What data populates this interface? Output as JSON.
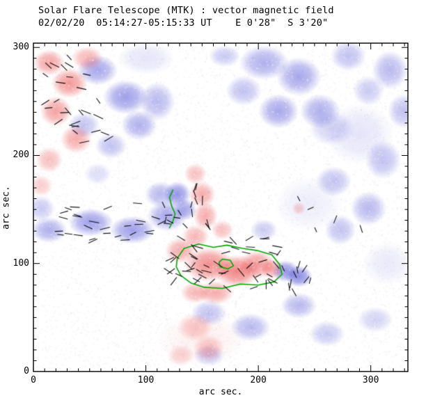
{
  "chart_data": {
    "type": "heatmap",
    "title": "Solar Flare Telescope (MTK) : vector magnetic field",
    "subtitle": "02/02/20  05:14:27-05:15:33 UT    E 0'28\"  S 3'20\"",
    "xlabel": "arc sec.",
    "ylabel": "arc sec.",
    "xlim": [
      0,
      333
    ],
    "ylim": [
      0,
      304
    ],
    "xticks": [
      0,
      100,
      200,
      300
    ],
    "yticks": [
      0,
      100,
      200,
      300
    ],
    "minor_tick_step": 10,
    "grid": false,
    "legend": "none",
    "colors": {
      "positive": "#eb4646",
      "negative": "#5050d7",
      "contour": "#00a800",
      "vectors": "#000000",
      "frame": "#000000",
      "background": "#ffffff"
    },
    "description": "Vector magnetogram map: blue = negative polarity longitudinal field, red = positive polarity, black segments = transverse field vectors, green = contours around the flaring positive-polarity core.",
    "field_blobs": {
      "negative": [
        [
          57,
          279,
          18,
          14,
          0.5
        ],
        [
          82,
          254,
          20,
          16,
          0.55
        ],
        [
          45,
          228,
          14,
          12,
          0.35
        ],
        [
          94,
          228,
          16,
          14,
          0.45
        ],
        [
          69,
          209,
          14,
          12,
          0.35
        ],
        [
          110,
          250,
          16,
          18,
          0.4
        ],
        [
          170,
          292,
          14,
          10,
          0.3
        ],
        [
          205,
          286,
          22,
          16,
          0.45
        ],
        [
          236,
          273,
          20,
          18,
          0.5
        ],
        [
          255,
          241,
          18,
          16,
          0.45
        ],
        [
          218,
          241,
          18,
          16,
          0.5
        ],
        [
          187,
          260,
          16,
          14,
          0.35
        ],
        [
          317,
          279,
          16,
          18,
          0.4
        ],
        [
          280,
          292,
          16,
          14,
          0.35
        ],
        [
          298,
          260,
          14,
          14,
          0.3
        ],
        [
          329,
          241,
          14,
          16,
          0.35
        ],
        [
          311,
          196,
          16,
          18,
          0.35
        ],
        [
          267,
          176,
          16,
          14,
          0.35
        ],
        [
          298,
          151,
          16,
          16,
          0.4
        ],
        [
          273,
          131,
          14,
          14,
          0.35
        ],
        [
          265,
          225,
          20,
          16,
          0.25
        ],
        [
          290,
          220,
          30,
          28,
          0.15
        ],
        [
          14,
          131,
          16,
          12,
          0.45
        ],
        [
          51,
          138,
          20,
          13,
          0.55
        ],
        [
          88,
          131,
          20,
          13,
          0.55
        ],
        [
          119,
          144,
          18,
          14,
          0.5
        ],
        [
          113,
          164,
          14,
          12,
          0.4
        ],
        [
          128,
          164,
          12,
          12,
          0.6
        ],
        [
          135,
          150,
          10,
          10,
          0.5
        ],
        [
          57,
          183,
          12,
          10,
          0.2
        ],
        [
          7,
          151,
          12,
          12,
          0.3
        ],
        [
          205,
          131,
          12,
          10,
          0.3
        ],
        [
          224,
          93,
          12,
          10,
          0.6
        ],
        [
          236,
          88,
          12,
          10,
          0.65
        ],
        [
          156,
          54,
          16,
          12,
          0.35
        ],
        [
          193,
          41,
          18,
          13,
          0.4
        ],
        [
          236,
          61,
          16,
          12,
          0.4
        ],
        [
          156,
          15,
          14,
          10,
          0.3
        ],
        [
          261,
          35,
          16,
          12,
          0.3
        ],
        [
          304,
          48,
          16,
          12,
          0.25
        ],
        [
          315,
          100,
          22,
          20,
          0.12
        ],
        [
          245,
          155,
          30,
          25,
          0.1
        ],
        [
          100,
          290,
          25,
          15,
          0.15
        ]
      ],
      "positive": [
        [
          14,
          286,
          14,
          12,
          0.5
        ],
        [
          32,
          267,
          16,
          14,
          0.55
        ],
        [
          48,
          290,
          14,
          11,
          0.4
        ],
        [
          20,
          241,
          14,
          14,
          0.5
        ],
        [
          38,
          215,
          14,
          13,
          0.45
        ],
        [
          14,
          196,
          12,
          12,
          0.35
        ],
        [
          7,
          172,
          10,
          10,
          0.28
        ],
        [
          156,
          99,
          22,
          16,
          0.6
        ],
        [
          181,
          93,
          20,
          15,
          0.65
        ],
        [
          199,
          99,
          16,
          13,
          0.55
        ],
        [
          212,
          95,
          10,
          9,
          0.45
        ],
        [
          131,
          112,
          14,
          12,
          0.45
        ],
        [
          144,
          125,
          12,
          11,
          0.4
        ],
        [
          162,
          73,
          16,
          11,
          0.45
        ],
        [
          144,
          73,
          13,
          10,
          0.4
        ],
        [
          150,
          164,
          12,
          12,
          0.45
        ],
        [
          153,
          144,
          11,
          13,
          0.45
        ],
        [
          144,
          183,
          10,
          10,
          0.35
        ],
        [
          168,
          131,
          10,
          9,
          0.35
        ],
        [
          144,
          41,
          16,
          13,
          0.3
        ],
        [
          156,
          22,
          14,
          12,
          0.3
        ],
        [
          131,
          15,
          12,
          10,
          0.25
        ],
        [
          236,
          151,
          6,
          6,
          0.25
        ],
        [
          150,
          30,
          40,
          25,
          0.08
        ]
      ]
    },
    "vector_clusters": [
      [
        36,
        251,
        62,
        82,
        28,
        10,
        45,
        5,
        9
      ],
      [
        72,
        138,
        112,
        36,
        32,
        0,
        28,
        5,
        9
      ],
      [
        170,
        100,
        104,
        48,
        48,
        0,
        55,
        5,
        9
      ],
      [
        135,
        152,
        42,
        46,
        14,
        80,
        45,
        5,
        8
      ],
      [
        226,
        86,
        42,
        30,
        12,
        90,
        40,
        5,
        8
      ],
      [
        262,
        140,
        64,
        44,
        5,
        45,
        70,
        4,
        7
      ]
    ],
    "contours": {
      "main_loop": [
        [
          128,
          105
        ],
        [
          134,
          114
        ],
        [
          147,
          118
        ],
        [
          160,
          115
        ],
        [
          172,
          117
        ],
        [
          186,
          114
        ],
        [
          199,
          112
        ],
        [
          212,
          108
        ],
        [
          219,
          99
        ],
        [
          221,
          90
        ],
        [
          214,
          83
        ],
        [
          200,
          80
        ],
        [
          184,
          81
        ],
        [
          168,
          77
        ],
        [
          152,
          78
        ],
        [
          140,
          82
        ],
        [
          131,
          89
        ],
        [
          127,
          97
        ],
        [
          128,
          105
        ]
      ],
      "inner_loop": [
        [
          168,
          104
        ],
        [
          175,
          103
        ],
        [
          178,
          98
        ],
        [
          173,
          95
        ],
        [
          166,
          97
        ],
        [
          165,
          101
        ],
        [
          168,
          104
        ]
      ],
      "neutral_segment": [
        [
          124,
          168
        ],
        [
          121,
          161
        ],
        [
          123,
          153
        ],
        [
          126,
          146
        ],
        [
          124,
          139
        ],
        [
          121,
          133
        ]
      ]
    }
  }
}
